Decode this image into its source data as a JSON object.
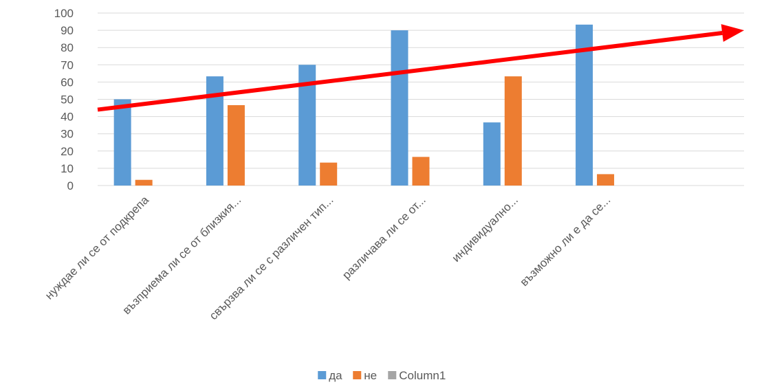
{
  "chart_data": {
    "type": "bar",
    "categories": [
      "нуждае ли се от подкрепа",
      "възприема ли се от близкия...",
      "свързва ли се с различен тип...",
      "различава ли се от...",
      "индивидуално...",
      "възможно ли е да се...",
      ""
    ],
    "series": [
      {
        "name": "да",
        "color": "#5B9BD5",
        "values": [
          50,
          63.3,
          70,
          90,
          36.6,
          93.3,
          null
        ]
      },
      {
        "name": "не",
        "color": "#ED7D31",
        "values": [
          3.3,
          46.6,
          13.3,
          16.6,
          63.3,
          6.6,
          null
        ]
      },
      {
        "name": "Column1",
        "color": "#A5A5A5",
        "values": [
          null,
          null,
          null,
          null,
          null,
          null,
          null
        ]
      }
    ],
    "ylim": [
      0,
      100
    ],
    "yticks": [
      0,
      10,
      20,
      30,
      40,
      50,
      60,
      70,
      80,
      90,
      100
    ],
    "grid": true,
    "legend_position": "bottom",
    "annotation": {
      "type": "arrow",
      "color": "#FF0000",
      "from": [
        0,
        44
      ],
      "to": [
        7,
        90
      ]
    }
  }
}
